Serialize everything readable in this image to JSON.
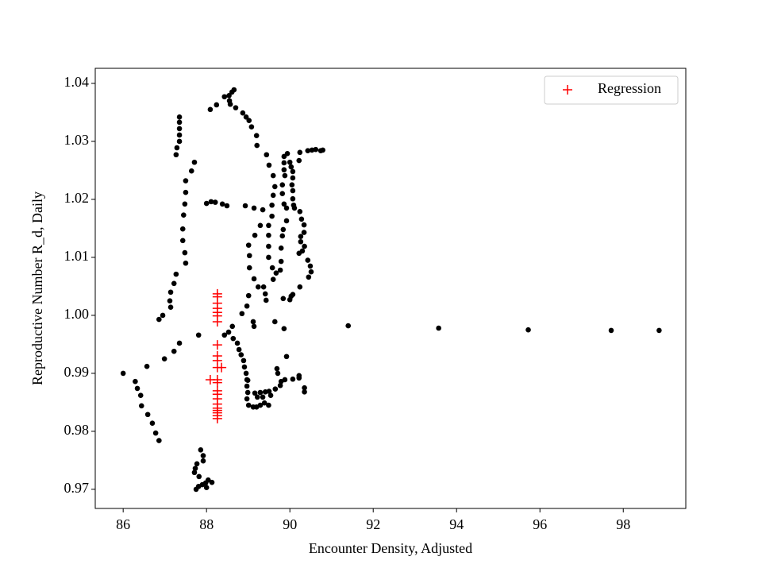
{
  "chart_data": {
    "type": "scatter",
    "xlabel": "Encounter Density, Adjusted",
    "ylabel": "Reproductive Number R_d, Daily",
    "xlim": [
      85.33,
      99.5
    ],
    "ylim": [
      0.9667,
      1.0426
    ],
    "xticks": [
      86,
      88,
      90,
      92,
      94,
      96,
      98
    ],
    "yticks": [
      0.97,
      0.98,
      0.99,
      {
        "value": 1,
        "label": "1.00"
      },
      1.01,
      1.02,
      1.03,
      1.04
    ],
    "legend": "upper right",
    "series": [
      {
        "color": "#000000",
        "marker": "dot",
        "x": [
          86.0,
          86.29,
          86.34,
          86.42,
          86.44,
          86.59,
          86.7,
          86.78,
          86.86,
          86.57,
          86.86,
          86.95,
          86.99,
          87.22,
          87.35,
          87.12,
          87.14,
          87.14,
          87.22,
          87.27,
          87.5,
          87.48,
          87.43,
          87.43,
          87.45,
          87.48,
          87.5,
          87.5,
          87.64,
          87.71,
          87.27,
          87.29,
          87.35,
          87.35,
          87.35,
          87.35,
          87.35,
          87.81,
          87.86,
          87.92,
          87.92,
          87.77,
          87.73,
          87.71,
          87.82,
          87.81,
          87.75,
          87.9,
          87.98,
          88.04,
          88.13,
          88.0,
          88.0,
          88.11,
          88.21,
          88.38,
          88.49,
          88.09,
          88.24,
          88.43,
          88.54,
          88.55,
          88.57,
          88.61,
          88.66,
          88.7,
          88.87,
          88.95,
          89.02,
          89.08,
          89.2,
          89.21,
          89.44,
          89.5,
          89.6,
          89.64,
          89.6,
          89.57,
          89.57,
          89.49,
          89.49,
          89.49,
          89.49,
          89.58,
          89.6,
          89.67,
          89.77,
          89.79,
          89.79,
          89.82,
          89.84,
          89.92,
          89.92,
          89.86,
          89.82,
          89.82,
          89.88,
          89.86,
          89.86,
          89.86,
          89.94,
          90.0,
          90.03,
          90.07,
          90.07,
          90.05,
          90.07,
          90.07,
          90.09,
          90.11,
          90.24,
          90.22,
          90.24,
          90.43,
          90.53,
          90.62,
          90.74,
          90.79,
          90.28,
          90.34,
          90.34,
          90.26,
          90.26,
          90.35,
          90.22,
          90.3,
          90.43,
          90.49,
          90.51,
          90.45,
          90.24,
          90.07,
          90.0,
          90.03,
          89.84,
          88.93,
          89.14,
          89.35,
          89.29,
          89.16,
          89.01,
          89.03,
          89.03,
          89.14,
          89.24,
          89.37,
          89.41,
          89.43,
          89.01,
          88.97,
          88.85,
          89.12,
          89.14,
          89.64,
          89.86,
          88.62,
          88.53,
          88.43,
          88.64,
          88.74,
          88.78,
          88.83,
          88.89,
          88.91,
          88.95,
          88.97,
          88.97,
          88.99,
          88.97,
          89.01,
          89.12,
          89.2,
          89.29,
          89.22,
          89.16,
          89.29,
          89.41,
          89.35,
          89.39,
          89.49,
          89.54,
          89.5,
          89.65,
          89.77,
          89.79,
          89.88,
          90.07,
          90.22,
          90.22,
          90.35,
          90.35,
          89.69,
          89.71,
          89.92,
          88.99,
          91.4,
          93.57,
          95.72,
          97.71,
          98.86
        ],
        "values": [
          0.99,
          0.9886,
          0.9874,
          0.9862,
          0.9844,
          0.9829,
          0.9814,
          0.9797,
          0.9784,
          0.9912,
          0.9993,
          1.0,
          0.9925,
          0.9938,
          0.9952,
          1.0025,
          1.0014,
          1.004,
          1.0055,
          1.0071,
          1.009,
          1.0108,
          1.0129,
          1.0149,
          1.0173,
          1.0192,
          1.0212,
          1.0232,
          1.0249,
          1.0264,
          1.0277,
          1.0289,
          1.03,
          1.0311,
          1.0322,
          1.0333,
          1.0342,
          0.9966,
          0.9768,
          0.9758,
          0.9749,
          0.9744,
          0.9736,
          0.9729,
          0.9722,
          0.9705,
          0.97,
          0.9708,
          0.9711,
          0.9716,
          0.9712,
          0.9703,
          1.0193,
          1.0196,
          1.0195,
          1.0192,
          1.0189,
          1.0355,
          1.0363,
          1.0377,
          1.0379,
          1.037,
          1.0364,
          1.0385,
          1.0389,
          1.0358,
          1.0349,
          1.0342,
          1.0336,
          1.0325,
          1.031,
          1.0293,
          1.0277,
          1.0259,
          1.0241,
          1.0222,
          1.0207,
          1.019,
          1.0171,
          1.0155,
          1.0138,
          1.0119,
          1.01,
          1.0082,
          1.0062,
          1.0073,
          1.0078,
          1.0093,
          1.0116,
          1.0137,
          1.0148,
          1.0163,
          1.0185,
          1.0192,
          1.021,
          1.0225,
          1.0241,
          1.0251,
          1.0263,
          1.0274,
          1.0279,
          1.0264,
          1.0256,
          1.0248,
          1.0237,
          1.0225,
          1.0215,
          1.0201,
          1.019,
          1.0185,
          1.0179,
          1.0267,
          1.0281,
          1.0284,
          1.0285,
          1.0286,
          1.0284,
          1.0285,
          1.0166,
          1.0156,
          1.0143,
          1.0136,
          1.0127,
          1.0119,
          1.0107,
          1.0111,
          1.0095,
          1.0085,
          1.0075,
          1.0066,
          1.0049,
          1.0036,
          1.0027,
          1.0033,
          1.0029,
          1.0189,
          1.0185,
          1.0182,
          1.0155,
          1.0138,
          1.0121,
          1.0103,
          1.0082,
          1.0063,
          1.0049,
          1.0049,
          1.0037,
          1.0026,
          1.0034,
          1.0016,
          1.0003,
          0.9989,
          0.9981,
          0.9989,
          0.9977,
          0.9981,
          0.9971,
          0.9966,
          0.996,
          0.9952,
          0.9941,
          0.9932,
          0.9922,
          0.9911,
          0.99,
          0.9889,
          0.9878,
          0.9867,
          0.9856,
          0.9845,
          0.9842,
          0.9842,
          0.9845,
          0.9859,
          0.9866,
          0.9867,
          0.9868,
          0.9859,
          0.9849,
          0.9845,
          0.9862,
          0.9869,
          0.9873,
          0.9879,
          0.9886,
          0.9889,
          0.989,
          0.9896,
          0.9892,
          0.9875,
          0.9868,
          0.9908,
          0.99,
          0.9929,
          0.9888,
          0.9982,
          0.9978,
          0.9975,
          0.9974,
          0.9974
        ]
      },
      {
        "name": "Regression",
        "color": "#ff0000",
        "marker": "plus",
        "x": [
          88.26,
          88.26,
          88.26,
          88.26,
          88.26,
          88.26,
          88.26,
          88.26,
          88.26,
          88.26,
          88.26,
          88.26,
          88.26,
          88.26,
          88.26,
          88.26,
          88.26,
          88.26,
          88.26,
          88.26,
          88.26,
          88.26,
          88.09,
          88.36
        ],
        "values": [
          1.0037,
          1.0032,
          1.0021,
          1.0012,
          1.0005,
          0.9999,
          0.9989,
          0.9949,
          0.993,
          0.9922,
          0.991,
          0.9889,
          0.9884,
          0.987,
          0.9864,
          0.9856,
          0.9847,
          0.984,
          0.9836,
          0.9832,
          0.9827,
          0.9822,
          0.9889,
          0.991
        ]
      }
    ]
  }
}
